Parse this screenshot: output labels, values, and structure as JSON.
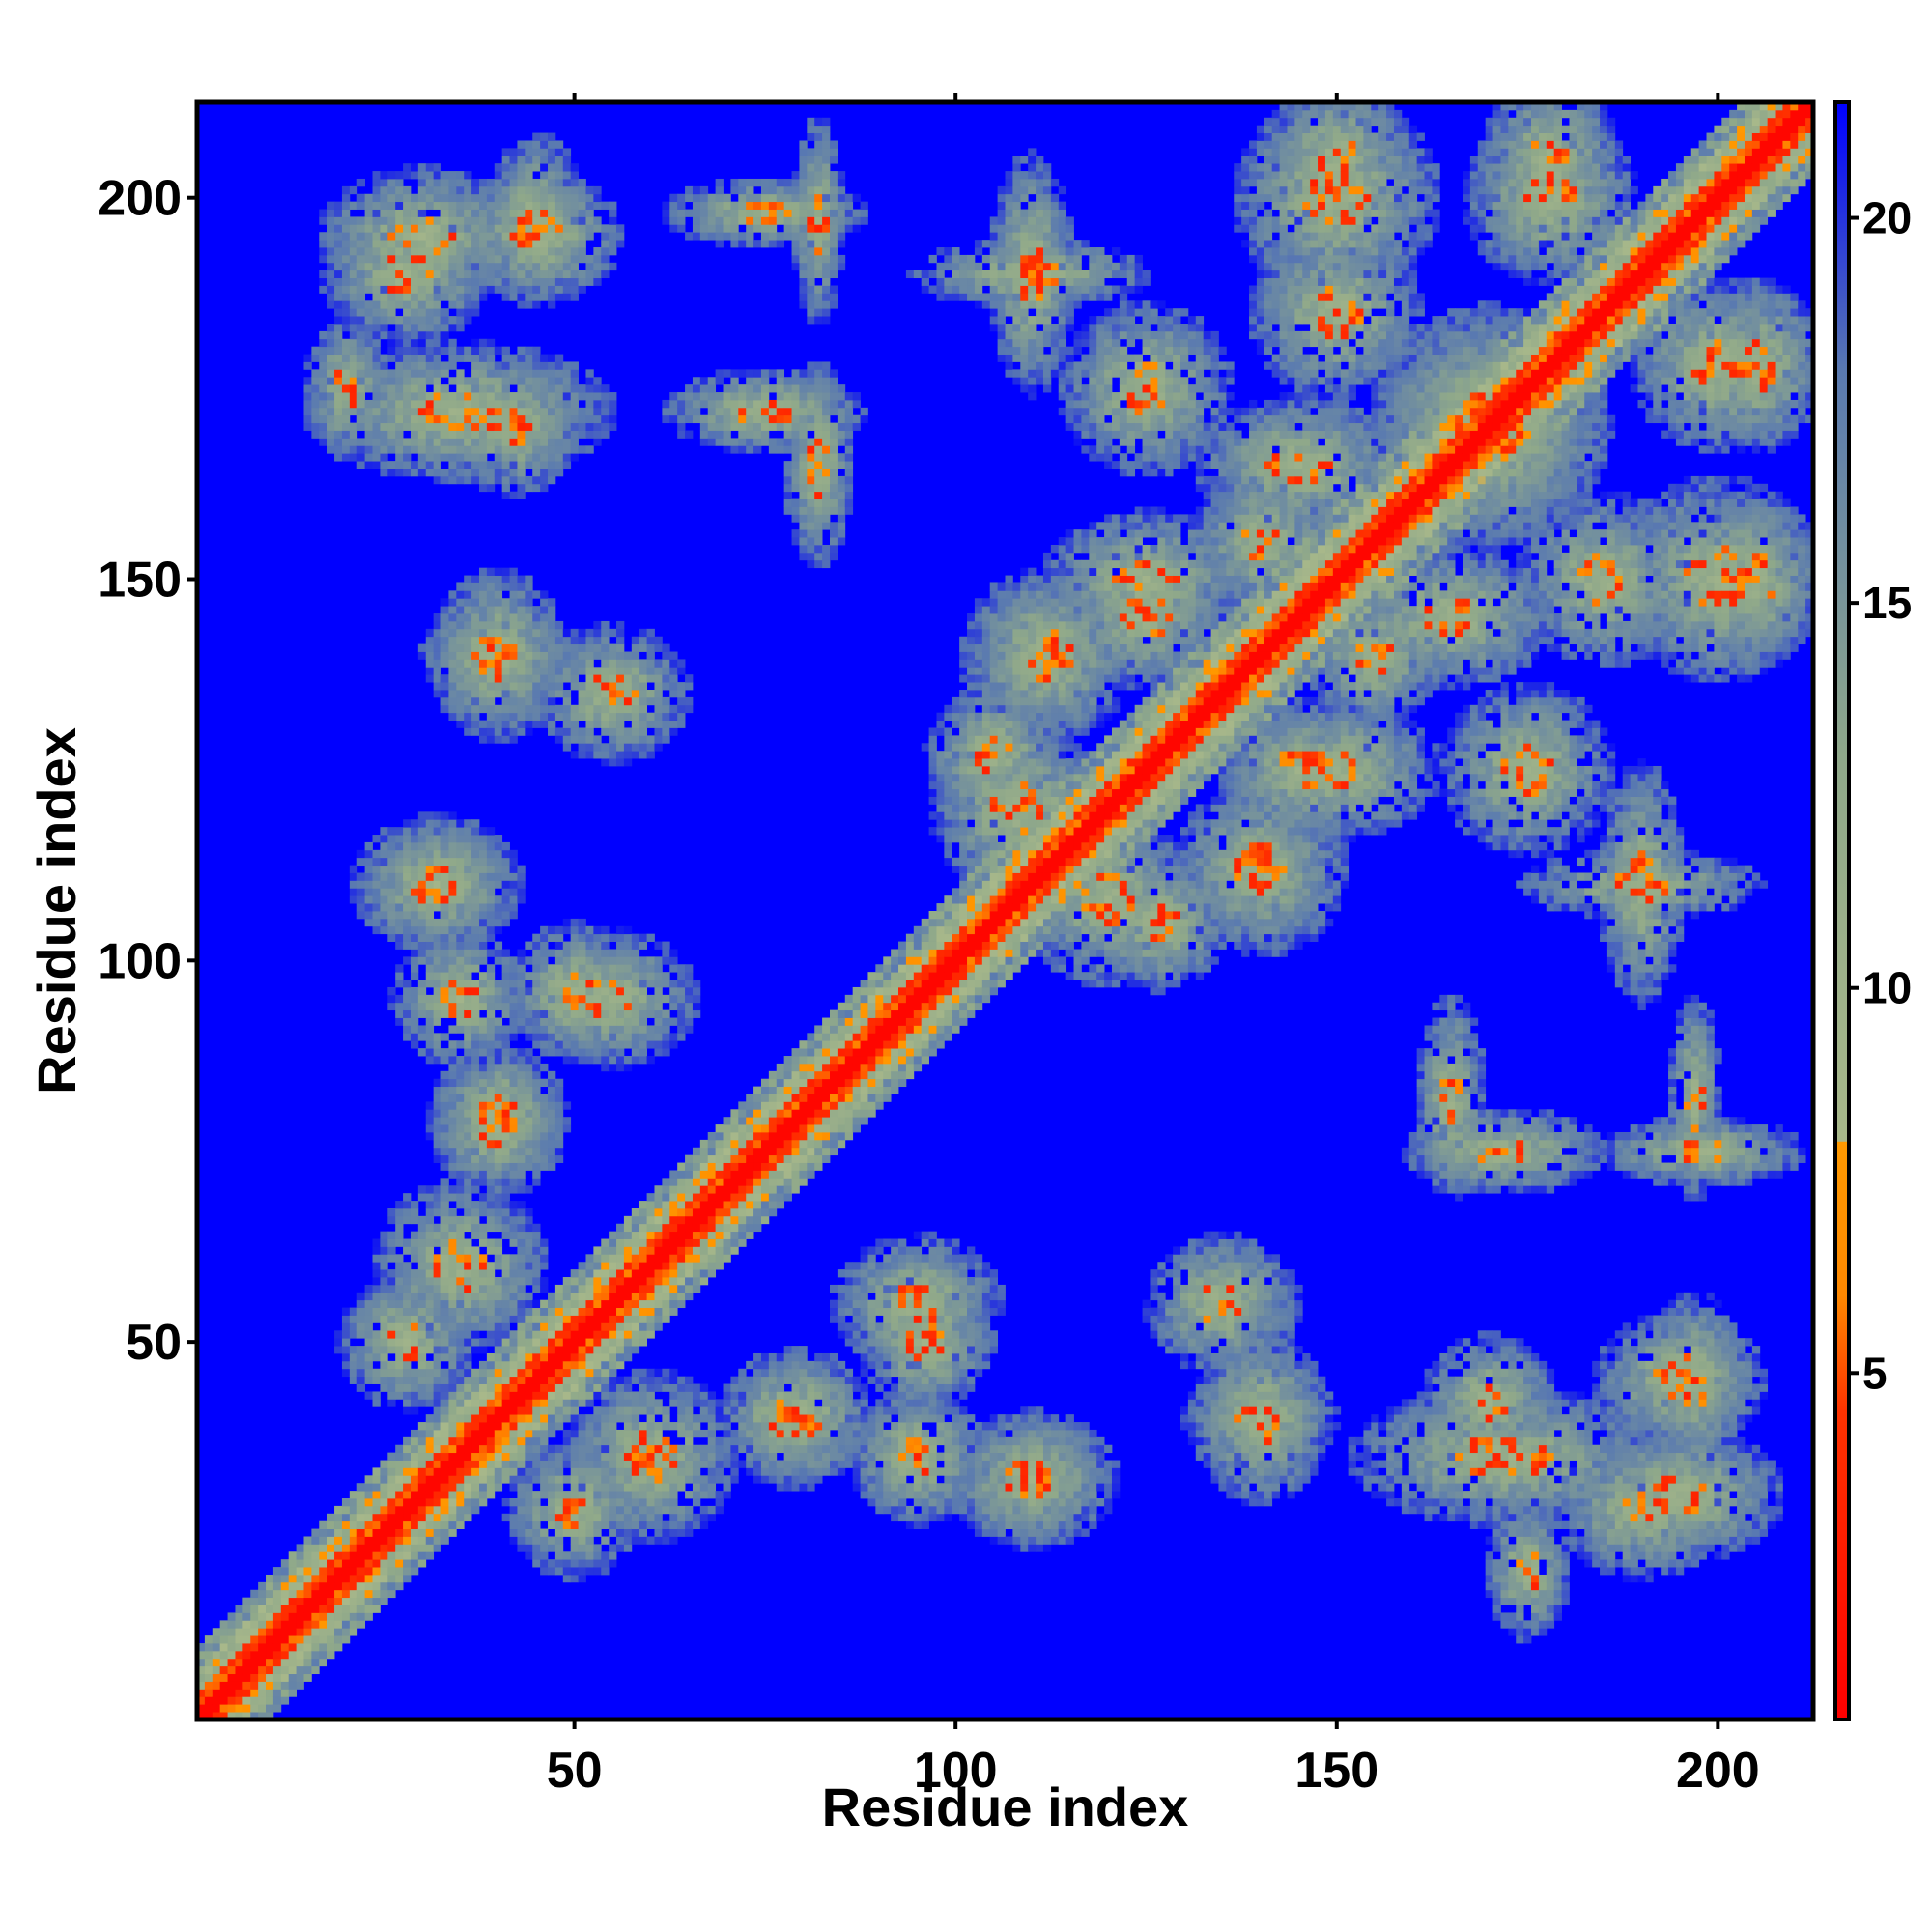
{
  "chart_data": {
    "type": "heatmap",
    "title": "",
    "xlabel": "Residue index",
    "ylabel": "Residue index",
    "x_range": [
      1,
      212
    ],
    "y_range": [
      1,
      212
    ],
    "x_ticks": [
      50,
      100,
      150,
      200
    ],
    "y_ticks": [
      50,
      100,
      150,
      200
    ],
    "x_tick_labels": [
      "50",
      "100",
      "150",
      "200"
    ],
    "y_tick_labels": [
      "50",
      "100",
      "150",
      "200"
    ],
    "grid": false,
    "symmetric": true,
    "diagonal_band_width": 6,
    "colorbar": {
      "range": [
        0.5,
        21.5
      ],
      "ticks": [
        5,
        10,
        15,
        20
      ],
      "tick_labels": [
        "5",
        "10",
        "15",
        "20"
      ],
      "placement": "right",
      "stops": [
        {
          "value": 0.5,
          "color": "#ff0000"
        },
        {
          "value": 4.5,
          "color": "#ff3300"
        },
        {
          "value": 6.0,
          "color": "#ff8800"
        },
        {
          "value": 8.0,
          "color": "#ff9900"
        },
        {
          "value": 8.01,
          "color": "#a8b88a"
        },
        {
          "value": 13.0,
          "color": "#8fa88a"
        },
        {
          "value": 18.0,
          "color": "#5a7ab0"
        },
        {
          "value": 21.5,
          "color": "#0000ff"
        }
      ]
    },
    "background_color": "#0000ff",
    "contact_clusters": [
      {
        "x": 50,
        "y": 28,
        "rx": 8,
        "ry": 8
      },
      {
        "x": 35,
        "y": 60,
        "rx": 10,
        "ry": 10
      },
      {
        "x": 40,
        "y": 78,
        "rx": 8,
        "ry": 8
      },
      {
        "x": 50,
        "y": 96,
        "rx": 8,
        "ry": 8
      },
      {
        "x": 32,
        "y": 110,
        "rx": 8,
        "ry": 8
      },
      {
        "x": 40,
        "y": 140,
        "rx": 9,
        "ry": 6
      },
      {
        "x": 35,
        "y": 172,
        "rx": 18,
        "ry": 8
      },
      {
        "x": 30,
        "y": 195,
        "rx": 12,
        "ry": 8
      },
      {
        "x": 45,
        "y": 195,
        "rx": 10,
        "ry": 8
      },
      {
        "x": 75,
        "y": 172,
        "rx": 12,
        "ry": 5
      },
      {
        "x": 75,
        "y": 198,
        "rx": 12,
        "ry": 4
      },
      {
        "x": 95,
        "y": 55,
        "rx": 10,
        "ry": 8
      },
      {
        "x": 110,
        "y": 32,
        "rx": 10,
        "ry": 8
      },
      {
        "x": 95,
        "y": 35,
        "rx": 8,
        "ry": 8
      },
      {
        "x": 80,
        "y": 40,
        "rx": 8,
        "ry": 8
      },
      {
        "x": 140,
        "y": 40,
        "rx": 8,
        "ry": 10
      },
      {
        "x": 135,
        "y": 55,
        "rx": 9,
        "ry": 8
      },
      {
        "x": 170,
        "y": 42,
        "rx": 8,
        "ry": 8
      },
      {
        "x": 165,
        "y": 82,
        "rx": 4,
        "ry": 12
      },
      {
        "x": 197,
        "y": 45,
        "rx": 6,
        "ry": 10
      },
      {
        "x": 190,
        "y": 28,
        "rx": 10,
        "ry": 8
      },
      {
        "x": 175,
        "y": 20,
        "rx": 5,
        "ry": 8
      },
      {
        "x": 197,
        "y": 82,
        "rx": 3,
        "ry": 12
      },
      {
        "x": 108,
        "y": 120,
        "rx": 10,
        "ry": 10
      },
      {
        "x": 112,
        "y": 140,
        "rx": 10,
        "ry": 10
      },
      {
        "x": 127,
        "y": 105,
        "rx": 8,
        "ry": 8
      },
      {
        "x": 140,
        "y": 112,
        "rx": 8,
        "ry": 8
      },
      {
        "x": 155,
        "y": 140,
        "rx": 8,
        "ry": 8
      },
      {
        "x": 125,
        "y": 150,
        "rx": 12,
        "ry": 8
      },
      {
        "x": 145,
        "y": 165,
        "rx": 12,
        "ry": 8
      },
      {
        "x": 110,
        "y": 190,
        "rx": 5,
        "ry": 14
      },
      {
        "x": 170,
        "y": 170,
        "rx": 14,
        "ry": 14
      },
      {
        "x": 150,
        "y": 200,
        "rx": 12,
        "ry": 12
      },
      {
        "x": 178,
        "y": 200,
        "rx": 10,
        "ry": 10
      },
      {
        "x": 205,
        "y": 178,
        "rx": 8,
        "ry": 10
      },
      {
        "x": 205,
        "y": 150,
        "rx": 8,
        "ry": 10
      },
      {
        "x": 185,
        "y": 150,
        "rx": 10,
        "ry": 10
      },
      {
        "x": 190,
        "y": 110,
        "rx": 14,
        "ry": 4
      },
      {
        "x": 175,
        "y": 125,
        "rx": 10,
        "ry": 10
      },
      {
        "x": 145,
        "y": 125,
        "rx": 9,
        "ry": 8
      }
    ]
  }
}
